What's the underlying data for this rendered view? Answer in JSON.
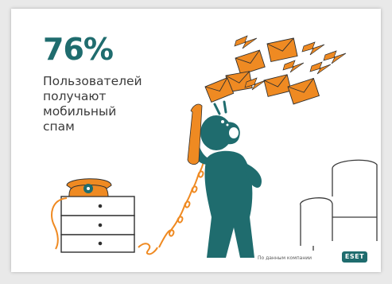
{
  "stat": {
    "value": "76%",
    "caption_lines": [
      "Пользователей",
      "получают",
      "мобильный",
      "спам"
    ]
  },
  "footer": {
    "source_note": "По данным компании",
    "logo_text": "ESET"
  },
  "colors": {
    "accent_teal": "#1f6c6e",
    "accent_orange": "#ef8a22",
    "text_gray": "#3b3b3b",
    "outline": "#2f2f2f",
    "background": "#ffffff"
  },
  "icons": [
    "envelope-icon",
    "lightning-bolt-icon",
    "telephone-icon",
    "person-figure-icon",
    "dresser-icon",
    "armchair-icon"
  ]
}
